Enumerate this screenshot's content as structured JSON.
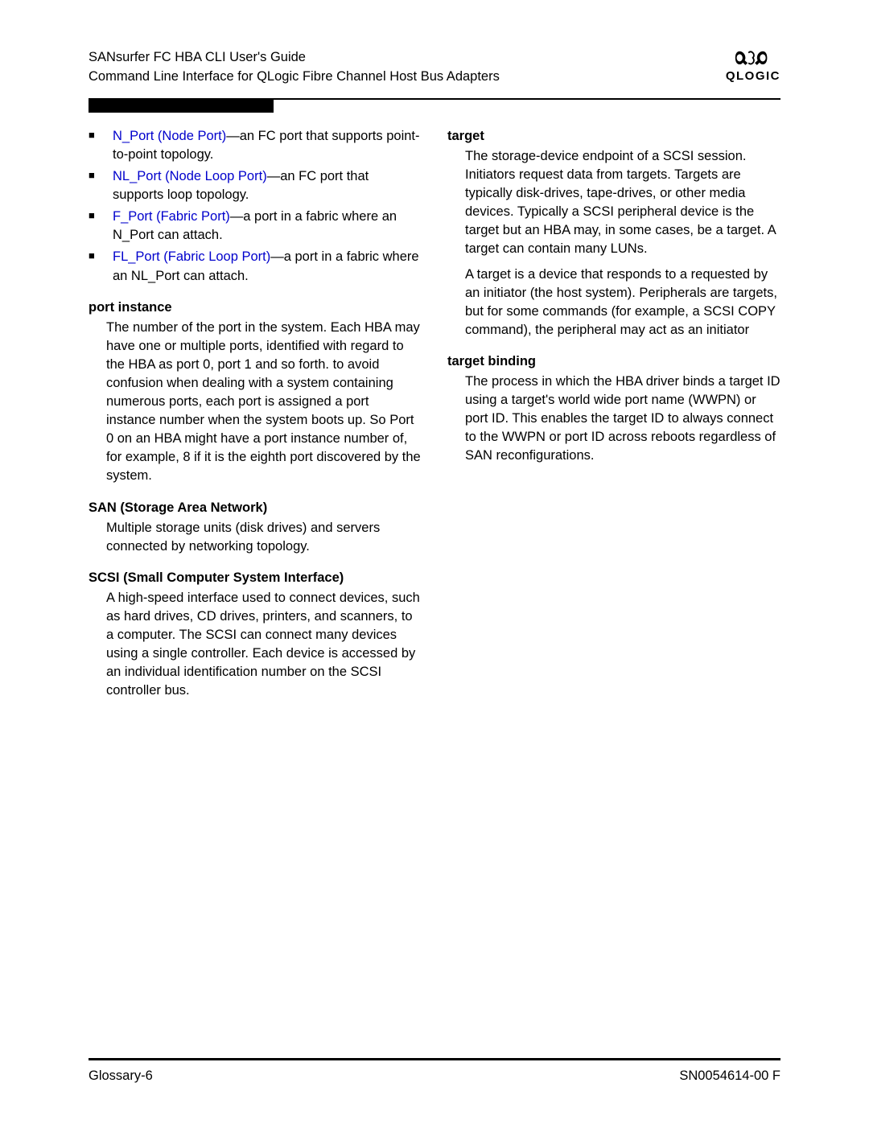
{
  "header": {
    "line1": "SANsurfer FC HBA CLI User's Guide",
    "line2": "Command Line Interface for QLogic Fibre Channel Host Bus Adapters",
    "logo_text": "QLOGIC"
  },
  "colors": {
    "link": "#0000cc",
    "text": "#000000",
    "background": "#ffffff"
  },
  "left_column": {
    "bullets": [
      {
        "link": "N_Port (Node Port)",
        "rest": "—an FC port that supports point-to-point topology."
      },
      {
        "link": "NL_Port (Node Loop Port)",
        "rest": "—an FC port that supports loop topology."
      },
      {
        "link": "F_Port (Fabric Port)",
        "rest": "—a port in a fabric where an N_Port can attach."
      },
      {
        "link": "FL_Port (Fabric Loop Port)",
        "rest": "—a port in a fabric where an NL_Port can attach."
      }
    ],
    "entries": [
      {
        "term": "port instance",
        "def": "The number of the port in the system. Each HBA may have one or multiple ports, identified with regard to the HBA as port 0, port 1 and so forth. to avoid confusion when dealing with a system containing numerous ports, each port is assigned a port instance number when the system boots up. So Port 0 on an HBA might have a port instance number of, for example, 8 if it is the eighth port discovered by the system."
      },
      {
        "term": "SAN (Storage Area Network)",
        "def": "Multiple storage units (disk drives) and servers connected by networking topology."
      },
      {
        "term": "SCSI (Small Computer System Interface)",
        "def": "A high-speed interface used to connect devices, such as hard drives, CD drives, printers, and scanners, to a computer. The SCSI can connect many devices using a single controller. Each device is accessed by an individual identification number on the SCSI controller bus."
      }
    ]
  },
  "right_column": {
    "entries": [
      {
        "term": "target",
        "defs": [
          "The storage-device endpoint of a SCSI session. Initiators request data from targets. Targets are typically disk-drives, tape-drives, or other media devices. Typically a SCSI peripheral device is the target but an HBA may, in some cases, be a target. A target can contain many LUNs.",
          "A target is a device that responds to a requested by an initiator (the host system). Peripherals are targets, but for some commands (for example, a SCSI COPY command), the peripheral may act as an initiator"
        ]
      },
      {
        "term": "target binding",
        "defs": [
          "The process in which the HBA driver binds a target ID using a target's world wide port name (WWPN) or port ID. This enables the target ID to always connect to the WWPN or port ID across reboots regardless of SAN reconfigurations."
        ]
      }
    ]
  },
  "footer": {
    "left": "Glossary-6",
    "right": "SN0054614-00  F"
  }
}
